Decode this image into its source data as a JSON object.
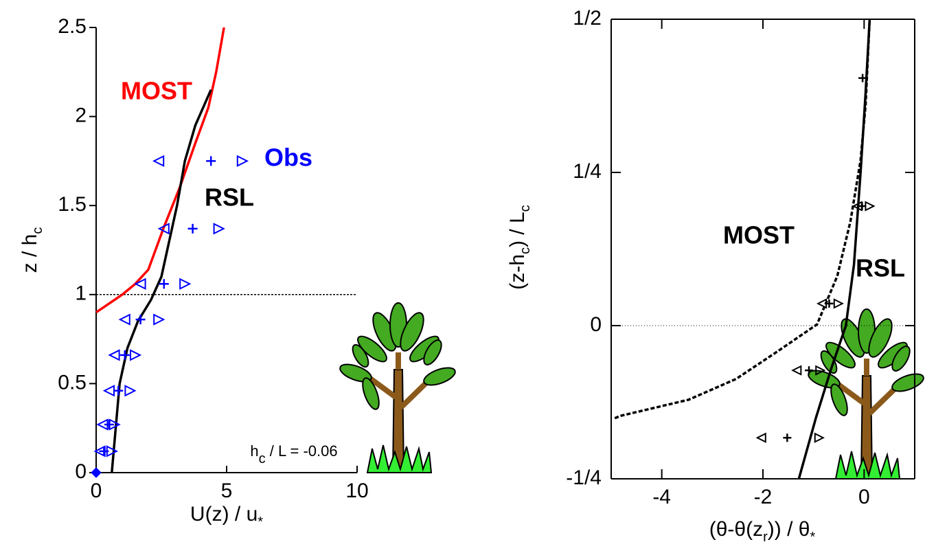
{
  "chart_data": [
    {
      "type": "line",
      "xlabel": [
        "U(z) / u",
        "*"
      ],
      "ylabel": [
        "z / h",
        "c"
      ],
      "annotation": [
        "h",
        "c",
        " / L = -0.06"
      ],
      "xlim": [
        0,
        10
      ],
      "xticks": [
        0,
        5,
        10
      ],
      "ylim": [
        0,
        2.5
      ],
      "yticks": [
        0,
        0.5,
        1,
        1.5,
        2,
        2.5
      ],
      "hline": 1,
      "series": [
        {
          "name": "MOST",
          "color": "#ff0000",
          "style": "solid",
          "x": [
            0,
            0.5,
            1,
            1.5,
            2,
            2.6,
            3.2,
            3.8,
            4.3,
            4.6,
            4.9
          ],
          "y": [
            0.9,
            0.95,
            1.0,
            1.06,
            1.14,
            1.38,
            1.6,
            1.85,
            2.05,
            2.25,
            2.5
          ]
        },
        {
          "name": "RSL",
          "color": "#000000",
          "style": "solid",
          "x": [
            0.6,
            0.75,
            0.9,
            1.2,
            1.6,
            2.1,
            2.5,
            2.8,
            3.1,
            3.4,
            3.8,
            4.4
          ],
          "y": [
            0,
            0.25,
            0.5,
            0.7,
            0.85,
            0.97,
            1.1,
            1.3,
            1.5,
            1.75,
            1.95,
            2.15
          ]
        },
        {
          "name": "Obs",
          "color": "#0000ff",
          "style": "markers",
          "x": [
            4.4,
            3.7,
            2.6,
            1.7,
            1.1,
            0.85,
            0.5,
            0.3,
            0
          ],
          "x_low": [
            2.4,
            2.6,
            1.7,
            1.1,
            0.7,
            0.5,
            0.25,
            0.15,
            0
          ],
          "x_high": [
            5.6,
            4.7,
            3.4,
            2.4,
            1.5,
            1.3,
            0.7,
            0.6,
            0
          ],
          "y": [
            1.75,
            1.37,
            1.06,
            0.86,
            0.66,
            0.46,
            0.27,
            0.12,
            0
          ]
        }
      ]
    },
    {
      "type": "line",
      "xlabel": [
        "(θ-θ(z",
        "r",
        ")) / θ",
        "*"
      ],
      "ylabel": [
        "(z-h",
        "c",
        ") / L",
        "c"
      ],
      "xlim": [
        -5,
        1
      ],
      "xticks": [
        -4,
        -2,
        0
      ],
      "ylim": [
        -0.25,
        0.5
      ],
      "yticks": [
        {
          "value": -0.25,
          "label": "-1/4"
        },
        0,
        {
          "value": 0.25,
          "label": "1/4"
        },
        {
          "value": 0.5,
          "label": "1/2"
        }
      ],
      "hline": 0,
      "series": [
        {
          "name": "MOST",
          "color": "#000000",
          "style": "dashed",
          "x": [
            -4.93,
            -4.8,
            -3.47,
            -2.53,
            -1.73,
            -0.93,
            -0.53,
            -0.27,
            -0.07,
            0.03,
            0.11
          ],
          "y": [
            -0.151,
            -0.147,
            -0.121,
            -0.087,
            -0.043,
            0.002,
            0.081,
            0.17,
            0.27,
            0.36,
            0.5
          ]
        },
        {
          "name": "RSL",
          "color": "#000000",
          "style": "solid",
          "x": [
            -1.29,
            -0.95,
            -0.65,
            -0.36,
            -0.2,
            -0.07,
            0.03,
            0.11
          ],
          "y": [
            -0.25,
            -0.15,
            -0.07,
            0,
            0.1,
            0.25,
            0.38,
            0.5
          ]
        },
        {
          "color": "#000000",
          "style": "markers",
          "x": [
            -0.03,
            -0.04,
            -0.69,
            -1.09,
            -1.52
          ],
          "x_low": [
            null,
            -0.13,
            -0.83,
            -1.33,
            -2.03
          ],
          "x_high": [
            null,
            0.11,
            -0.51,
            -0.87,
            -0.89
          ],
          "y": [
            0.404,
            0.195,
            0.036,
            -0.073,
            -0.183
          ]
        }
      ]
    }
  ]
}
